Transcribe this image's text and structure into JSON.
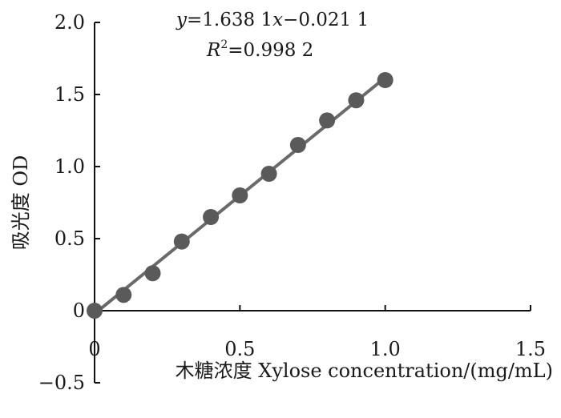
{
  "chart_data": {
    "type": "scatter",
    "xlabel": "木糖浓度  Xylose concentration/(mg/mL)",
    "ylabel": "吸光度  OD",
    "xlim": [
      0,
      1.5
    ],
    "ylim": [
      -0.5,
      2.0
    ],
    "x_ticks": [
      "0",
      "0.5",
      "1.0",
      "1.5"
    ],
    "y_ticks": [
      "−0.5",
      "0",
      "0.5",
      "1.0",
      "1.5",
      "2.0"
    ],
    "grid": false,
    "legend": "none",
    "colors": {
      "points": "#5a5a5a",
      "line": "#6a6a6a",
      "axis": "#111111"
    },
    "series": [
      {
        "x": [
          0,
          0.1,
          0.2,
          0.3,
          0.4,
          0.5,
          0.6,
          0.7,
          0.8,
          0.9,
          1.0
        ],
        "y": [
          0,
          0.11,
          0.26,
          0.48,
          0.65,
          0.8,
          0.95,
          1.15,
          1.32,
          1.46,
          1.6
        ]
      }
    ],
    "trendline": {
      "slope": 1.6381,
      "intercept": -0.0211,
      "x_range": [
        0,
        1.0
      ]
    },
    "annotations": {
      "equation": {
        "y_var": "y",
        "eq_a": "=1.638 1",
        "x_var": "x",
        "eq_b": "−0.021 1"
      },
      "r2": {
        "r": "R",
        "sup": "2",
        "value": "=0.998 2"
      }
    }
  }
}
